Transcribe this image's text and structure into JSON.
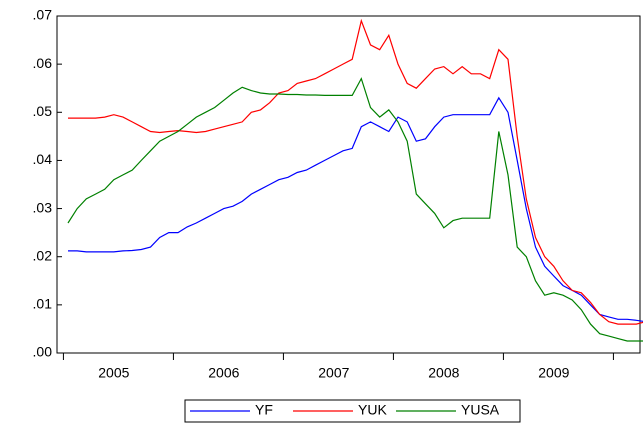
{
  "chart_data": {
    "type": "line",
    "categories": [
      null,
      null,
      null,
      null,
      null,
      "2005",
      null,
      null,
      null,
      null,
      null,
      null,
      null,
      null,
      null,
      null,
      null,
      "2006",
      null,
      null,
      null,
      null,
      null,
      null,
      null,
      null,
      null,
      null,
      null,
      "2007",
      null,
      null,
      null,
      null,
      null,
      null,
      null,
      null,
      null,
      null,
      null,
      "2008",
      null,
      null,
      null,
      null,
      null,
      null,
      null,
      null,
      null,
      null,
      null,
      "2009",
      null,
      null,
      null,
      null,
      null,
      null,
      null,
      null,
      null,
      null
    ],
    "series": [
      {
        "name": "YF",
        "color": "#0000ff",
        "values": [
          0.0212,
          0.0212,
          0.021,
          0.021,
          0.021,
          0.021,
          0.0212,
          0.0213,
          0.0215,
          0.022,
          0.024,
          0.025,
          0.025,
          0.0262,
          0.027,
          0.028,
          0.029,
          0.03,
          0.0305,
          0.0315,
          0.033,
          0.034,
          0.035,
          0.036,
          0.0365,
          0.0375,
          0.038,
          0.039,
          0.04,
          0.041,
          0.042,
          0.0425,
          0.047,
          0.048,
          0.047,
          0.046,
          0.049,
          0.048,
          0.044,
          0.0445,
          0.047,
          0.049,
          0.0495,
          0.0495,
          0.0495,
          0.0495,
          0.0495,
          0.053,
          0.05,
          0.04,
          0.03,
          0.022,
          0.018,
          0.016,
          0.014,
          0.013,
          0.012,
          0.01,
          0.008,
          0.0075,
          0.007,
          0.007,
          0.0068,
          0.0065
        ]
      },
      {
        "name": "YUK",
        "color": "#ff0000",
        "values": [
          0.0488,
          0.0488,
          0.0488,
          0.0488,
          0.049,
          0.0495,
          0.049,
          0.048,
          0.047,
          0.046,
          0.0458,
          0.046,
          0.0462,
          0.046,
          0.0458,
          0.046,
          0.0465,
          0.047,
          0.0475,
          0.048,
          0.05,
          0.0505,
          0.052,
          0.054,
          0.0545,
          0.056,
          0.0565,
          0.057,
          0.058,
          0.059,
          0.06,
          0.061,
          0.069,
          0.064,
          0.063,
          0.066,
          0.06,
          0.056,
          0.055,
          0.057,
          0.059,
          0.0595,
          0.058,
          0.0595,
          0.058,
          0.058,
          0.057,
          0.063,
          0.061,
          0.045,
          0.032,
          0.024,
          0.02,
          0.018,
          0.015,
          0.013,
          0.0125,
          0.0105,
          0.008,
          0.0065,
          0.006,
          0.006,
          0.006,
          0.0065
        ]
      },
      {
        "name": "YUSA",
        "color": "#008000",
        "values": [
          0.027,
          0.03,
          0.032,
          0.033,
          0.034,
          0.036,
          0.037,
          0.038,
          0.04,
          0.042,
          0.044,
          0.045,
          0.046,
          0.0475,
          0.049,
          0.05,
          0.051,
          0.0525,
          0.054,
          0.0552,
          0.0545,
          0.054,
          0.0538,
          0.0538,
          0.0537,
          0.0537,
          0.0536,
          0.0536,
          0.0535,
          0.0535,
          0.0535,
          0.0535,
          0.057,
          0.051,
          0.049,
          0.0505,
          0.048,
          0.044,
          0.033,
          0.031,
          0.029,
          0.026,
          0.0275,
          0.028,
          0.028,
          0.028,
          0.028,
          0.046,
          0.037,
          0.022,
          0.02,
          0.015,
          0.012,
          0.0125,
          0.012,
          0.011,
          0.009,
          0.006,
          0.004,
          0.0035,
          0.003,
          0.0025,
          0.0025,
          0.0025
        ]
      }
    ],
    "ylim": [
      0,
      0.07
    ],
    "yticks": [
      {
        "value": 0,
        "label": ".00"
      },
      {
        "value": 0.01,
        "label": ".01"
      },
      {
        "value": 0.02,
        "label": ".02"
      },
      {
        "value": 0.03,
        "label": ".03"
      },
      {
        "value": 0.04,
        "label": ".04"
      },
      {
        "value": 0.05,
        "label": ".05"
      },
      {
        "value": 0.06,
        "label": ".06"
      },
      {
        "value": 0.07,
        "label": ".07"
      }
    ],
    "legend": "bottom"
  }
}
